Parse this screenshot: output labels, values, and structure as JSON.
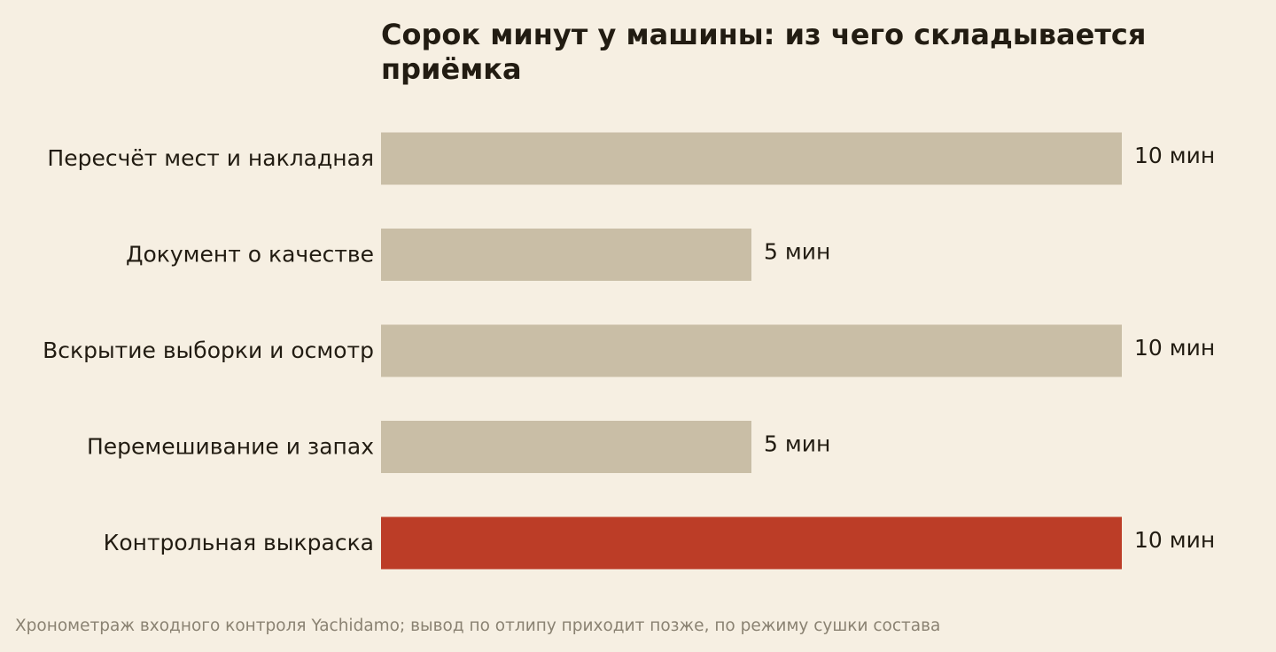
{
  "chart_data": {
    "type": "bar",
    "orientation": "horizontal",
    "title": "Сорок минут у машины: из чего складывается приёмка",
    "categories": [
      "Пересчёт мест и накладная",
      "Документ о качестве",
      "Вскрытие выборки и осмотр",
      "Перемешивание и запах",
      "Контрольная выкраска"
    ],
    "values": [
      10,
      5,
      10,
      5,
      10
    ],
    "value_labels": [
      "10 мин",
      "5 мин",
      "10 мин",
      "5 мин",
      "10 мин"
    ],
    "unit": "мин",
    "xlim": [
      0,
      10
    ],
    "grid": false,
    "legend": "none",
    "colors": {
      "default_bar": "#c9bea6",
      "highlight_bar": "#bc3d27",
      "text": "#221c12",
      "footnote": "#8a8272",
      "background": "#f6efe2"
    },
    "highlight_index": 4
  },
  "footnote": "Хронометраж входного контроля Yachidamo; вывод по отлипу приходит позже, по режиму сушки состава"
}
